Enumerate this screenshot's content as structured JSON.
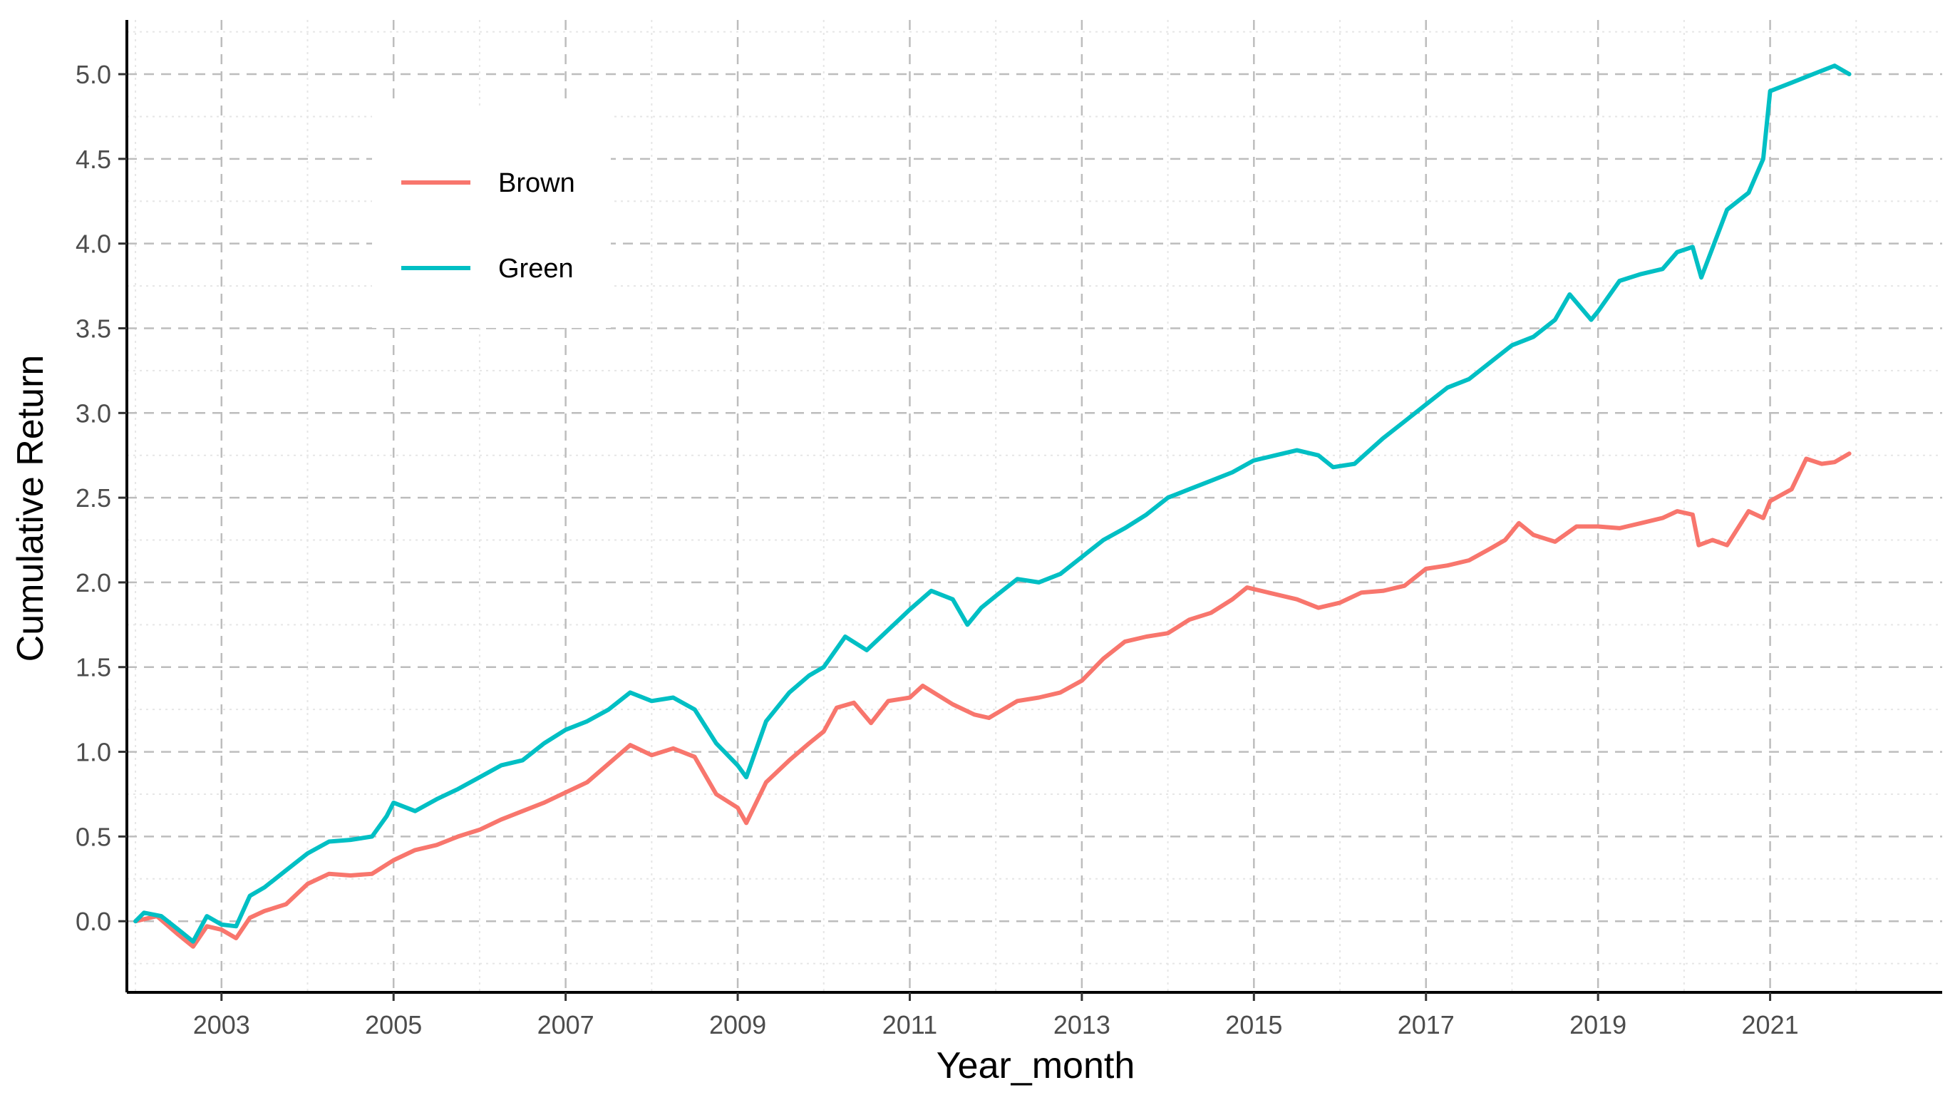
{
  "chart_data": {
    "type": "line",
    "xlabel": "Year_month",
    "ylabel": "Cumulative Return",
    "xlim": [
      2001.9,
      2023.0
    ],
    "ylim": [
      -0.42,
      5.32
    ],
    "x_ticks": [
      2003,
      2005,
      2007,
      2009,
      2011,
      2013,
      2015,
      2017,
      2019,
      2021
    ],
    "x_tick_labels": [
      "2003",
      "2005",
      "2007",
      "2009",
      "2011",
      "2013",
      "2015",
      "2017",
      "2019",
      "2021"
    ],
    "y_ticks": [
      0.0,
      0.5,
      1.0,
      1.5,
      2.0,
      2.5,
      3.0,
      3.5,
      4.0,
      4.5,
      5.0
    ],
    "y_tick_labels": [
      "0.0",
      "0.5",
      "1.0",
      "1.5",
      "2.0",
      "2.5",
      "3.0",
      "3.5",
      "4.0",
      "4.5",
      "5.0"
    ],
    "grid": true,
    "legend": {
      "position": "top-left",
      "entries": [
        "Brown",
        "Green"
      ]
    },
    "series": [
      {
        "name": "Brown",
        "color": "#F8766D",
        "points": [
          [
            2002.0,
            0.0
          ],
          [
            2002.25,
            0.03
          ],
          [
            2002.5,
            -0.08
          ],
          [
            2002.67,
            -0.15
          ],
          [
            2002.83,
            -0.03
          ],
          [
            2003.0,
            -0.05
          ],
          [
            2003.17,
            -0.1
          ],
          [
            2003.33,
            0.02
          ],
          [
            2003.5,
            0.06
          ],
          [
            2003.75,
            0.1
          ],
          [
            2004.0,
            0.22
          ],
          [
            2004.25,
            0.28
          ],
          [
            2004.5,
            0.27
          ],
          [
            2004.75,
            0.28
          ],
          [
            2005.0,
            0.36
          ],
          [
            2005.25,
            0.42
          ],
          [
            2005.5,
            0.45
          ],
          [
            2005.75,
            0.5
          ],
          [
            2006.0,
            0.54
          ],
          [
            2006.25,
            0.6
          ],
          [
            2006.5,
            0.65
          ],
          [
            2006.75,
            0.7
          ],
          [
            2007.0,
            0.76
          ],
          [
            2007.25,
            0.82
          ],
          [
            2007.5,
            0.93
          ],
          [
            2007.75,
            1.04
          ],
          [
            2008.0,
            0.98
          ],
          [
            2008.25,
            1.02
          ],
          [
            2008.5,
            0.97
          ],
          [
            2008.75,
            0.75
          ],
          [
            2009.0,
            0.67
          ],
          [
            2009.1,
            0.58
          ],
          [
            2009.33,
            0.82
          ],
          [
            2009.6,
            0.95
          ],
          [
            2009.83,
            1.05
          ],
          [
            2010.0,
            1.12
          ],
          [
            2010.15,
            1.26
          ],
          [
            2010.35,
            1.29
          ],
          [
            2010.55,
            1.17
          ],
          [
            2010.75,
            1.3
          ],
          [
            2011.0,
            1.32
          ],
          [
            2011.15,
            1.39
          ],
          [
            2011.5,
            1.28
          ],
          [
            2011.75,
            1.22
          ],
          [
            2011.92,
            1.2
          ],
          [
            2012.25,
            1.3
          ],
          [
            2012.5,
            1.32
          ],
          [
            2012.75,
            1.35
          ],
          [
            2013.0,
            1.42
          ],
          [
            2013.25,
            1.55
          ],
          [
            2013.5,
            1.65
          ],
          [
            2013.75,
            1.68
          ],
          [
            2014.0,
            1.7
          ],
          [
            2014.25,
            1.78
          ],
          [
            2014.5,
            1.82
          ],
          [
            2014.75,
            1.9
          ],
          [
            2014.92,
            1.97
          ],
          [
            2015.25,
            1.93
          ],
          [
            2015.5,
            1.9
          ],
          [
            2015.75,
            1.85
          ],
          [
            2016.0,
            1.88
          ],
          [
            2016.25,
            1.94
          ],
          [
            2016.5,
            1.95
          ],
          [
            2016.75,
            1.98
          ],
          [
            2017.0,
            2.08
          ],
          [
            2017.25,
            2.1
          ],
          [
            2017.5,
            2.13
          ],
          [
            2017.75,
            2.2
          ],
          [
            2017.92,
            2.25
          ],
          [
            2018.08,
            2.35
          ],
          [
            2018.25,
            2.28
          ],
          [
            2018.5,
            2.24
          ],
          [
            2018.75,
            2.33
          ],
          [
            2019.0,
            2.33
          ],
          [
            2019.25,
            2.32
          ],
          [
            2019.5,
            2.35
          ],
          [
            2019.75,
            2.38
          ],
          [
            2019.92,
            2.42
          ],
          [
            2020.1,
            2.4
          ],
          [
            2020.17,
            2.22
          ],
          [
            2020.33,
            2.25
          ],
          [
            2020.5,
            2.22
          ],
          [
            2020.75,
            2.42
          ],
          [
            2020.92,
            2.38
          ],
          [
            2021.0,
            2.48
          ],
          [
            2021.25,
            2.55
          ],
          [
            2021.42,
            2.73
          ],
          [
            2021.6,
            2.7
          ],
          [
            2021.75,
            2.71
          ],
          [
            2021.92,
            2.76
          ]
        ]
      },
      {
        "name": "Green",
        "color": "#00BFC4",
        "points": [
          [
            2002.0,
            0.0
          ],
          [
            2002.1,
            0.05
          ],
          [
            2002.3,
            0.03
          ],
          [
            2002.5,
            -0.05
          ],
          [
            2002.67,
            -0.12
          ],
          [
            2002.83,
            0.03
          ],
          [
            2003.0,
            -0.02
          ],
          [
            2003.17,
            -0.03
          ],
          [
            2003.33,
            0.15
          ],
          [
            2003.5,
            0.2
          ],
          [
            2003.75,
            0.3
          ],
          [
            2004.0,
            0.4
          ],
          [
            2004.25,
            0.47
          ],
          [
            2004.5,
            0.48
          ],
          [
            2004.75,
            0.5
          ],
          [
            2004.92,
            0.62
          ],
          [
            2005.0,
            0.7
          ],
          [
            2005.25,
            0.65
          ],
          [
            2005.5,
            0.72
          ],
          [
            2005.75,
            0.78
          ],
          [
            2006.0,
            0.85
          ],
          [
            2006.25,
            0.92
          ],
          [
            2006.5,
            0.95
          ],
          [
            2006.75,
            1.05
          ],
          [
            2007.0,
            1.13
          ],
          [
            2007.25,
            1.18
          ],
          [
            2007.5,
            1.25
          ],
          [
            2007.75,
            1.35
          ],
          [
            2008.0,
            1.3
          ],
          [
            2008.25,
            1.32
          ],
          [
            2008.5,
            1.25
          ],
          [
            2008.75,
            1.05
          ],
          [
            2009.0,
            0.92
          ],
          [
            2009.1,
            0.85
          ],
          [
            2009.33,
            1.18
          ],
          [
            2009.6,
            1.35
          ],
          [
            2009.83,
            1.45
          ],
          [
            2010.0,
            1.5
          ],
          [
            2010.25,
            1.68
          ],
          [
            2010.5,
            1.6
          ],
          [
            2010.75,
            1.72
          ],
          [
            2011.0,
            1.84
          ],
          [
            2011.25,
            1.95
          ],
          [
            2011.5,
            1.9
          ],
          [
            2011.67,
            1.75
          ],
          [
            2011.83,
            1.85
          ],
          [
            2012.0,
            1.92
          ],
          [
            2012.25,
            2.02
          ],
          [
            2012.5,
            2.0
          ],
          [
            2012.75,
            2.05
          ],
          [
            2013.0,
            2.15
          ],
          [
            2013.25,
            2.25
          ],
          [
            2013.5,
            2.32
          ],
          [
            2013.75,
            2.4
          ],
          [
            2014.0,
            2.5
          ],
          [
            2014.25,
            2.55
          ],
          [
            2014.5,
            2.6
          ],
          [
            2014.75,
            2.65
          ],
          [
            2015.0,
            2.72
          ],
          [
            2015.25,
            2.75
          ],
          [
            2015.5,
            2.78
          ],
          [
            2015.75,
            2.75
          ],
          [
            2015.92,
            2.68
          ],
          [
            2016.17,
            2.7
          ],
          [
            2016.5,
            2.85
          ],
          [
            2016.75,
            2.95
          ],
          [
            2017.0,
            3.05
          ],
          [
            2017.25,
            3.15
          ],
          [
            2017.5,
            3.2
          ],
          [
            2017.75,
            3.3
          ],
          [
            2018.0,
            3.4
          ],
          [
            2018.25,
            3.45
          ],
          [
            2018.5,
            3.55
          ],
          [
            2018.67,
            3.7
          ],
          [
            2018.92,
            3.55
          ],
          [
            2019.0,
            3.6
          ],
          [
            2019.25,
            3.78
          ],
          [
            2019.5,
            3.82
          ],
          [
            2019.75,
            3.85
          ],
          [
            2019.92,
            3.95
          ],
          [
            2020.1,
            3.98
          ],
          [
            2020.2,
            3.8
          ],
          [
            2020.35,
            4.0
          ],
          [
            2020.5,
            4.2
          ],
          [
            2020.75,
            4.3
          ],
          [
            2020.92,
            4.5
          ],
          [
            2021.0,
            4.9
          ],
          [
            2021.25,
            4.95
          ],
          [
            2021.5,
            5.0
          ],
          [
            2021.75,
            5.05
          ],
          [
            2021.92,
            5.0
          ]
        ]
      }
    ]
  }
}
